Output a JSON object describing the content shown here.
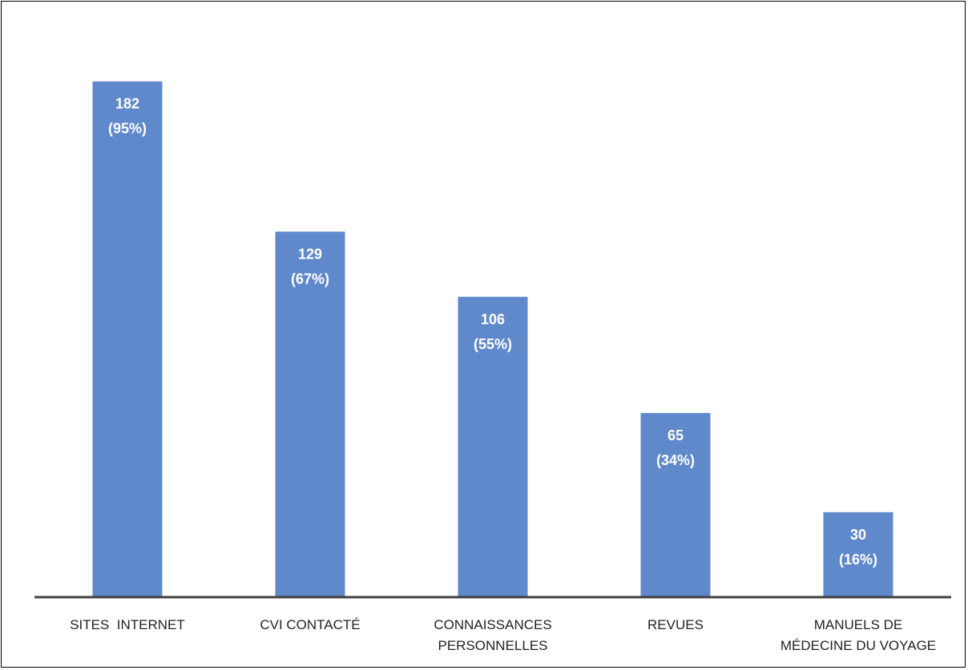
{
  "chart_data": {
    "type": "bar",
    "title": "",
    "xlabel": "",
    "ylabel": "",
    "categories": [
      [
        "SITES  INTERNET"
      ],
      [
        "CVI CONTACTÉ"
      ],
      [
        "CONNAISSANCES",
        "PERSONNELLES"
      ],
      [
        "REVUES"
      ],
      [
        "MANUELS DE",
        "MÉDECINE DU VOYAGE"
      ]
    ],
    "values": [
      182,
      129,
      106,
      65,
      30
    ],
    "percent_labels": [
      "(95%)",
      "(67%)",
      "(55%)",
      "(34%)",
      "(16%)"
    ],
    "value_labels": [
      "182",
      "129",
      "106",
      "65",
      "30"
    ],
    "ylim": [
      0,
      200
    ],
    "grid": false,
    "legend": "none",
    "colors": {
      "bar": "#6089CC",
      "axis": "#404040",
      "label_text": "#ffffff",
      "category_text": "#222222"
    }
  }
}
